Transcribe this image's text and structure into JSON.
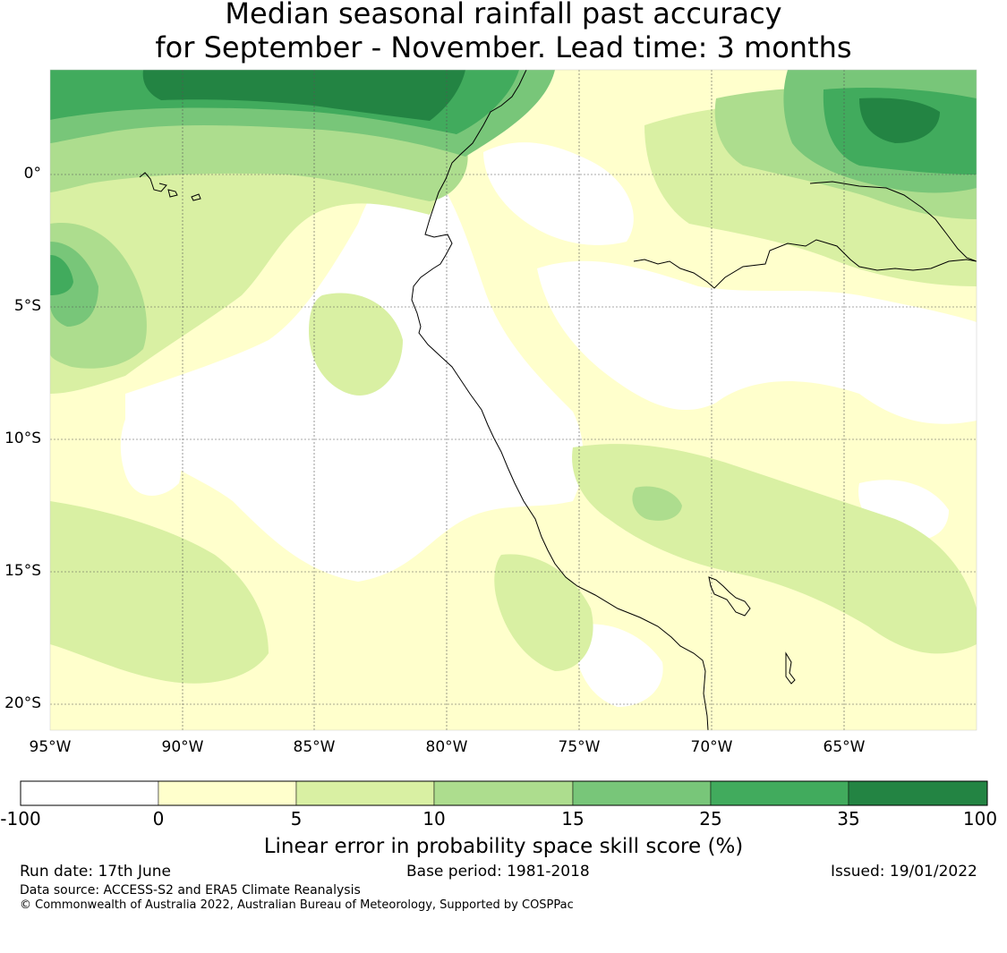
{
  "title": {
    "line1": "Median seasonal rainfall past accuracy",
    "line2": "for September - November. Lead time: 3 months"
  },
  "map": {
    "lat_labels": [
      "0°",
      "5°S",
      "10°S",
      "15°S",
      "20°S"
    ],
    "lon_labels": [
      "95°W",
      "90°W",
      "85°W",
      "80°W",
      "75°W",
      "70°W",
      "65°W"
    ],
    "background_color": "#ffffff",
    "coastline_color": "#000000"
  },
  "colorbar": {
    "title": "Linear error in probability space skill score (%)",
    "tick_labels": [
      "-100",
      "0",
      "5",
      "10",
      "15",
      "25",
      "35",
      "100"
    ],
    "bins": [
      {
        "range": "-100 to 0",
        "color": "#ffffff"
      },
      {
        "range": "0 to 5",
        "color": "#ffffcc"
      },
      {
        "range": "5 to 10",
        "color": "#d9f0a3"
      },
      {
        "range": "10 to 15",
        "color": "#addd8e"
      },
      {
        "range": "15 to 25",
        "color": "#78c679"
      },
      {
        "range": "25 to 35",
        "color": "#41ab5d"
      },
      {
        "range": "35 to 100",
        "color": "#238443"
      }
    ]
  },
  "footer": {
    "run_date": "Run date: 17th June",
    "base_period": "Base period: 1981-2018",
    "issued": "Issued: 19/01/2022",
    "data_source": "Data source: ACCESS-S2 and ERA5 Climate Reanalysis",
    "copyright": "© Commonwealth of Australia 2022, Australian Bureau of Meteorology, Supported by COSPPac"
  }
}
